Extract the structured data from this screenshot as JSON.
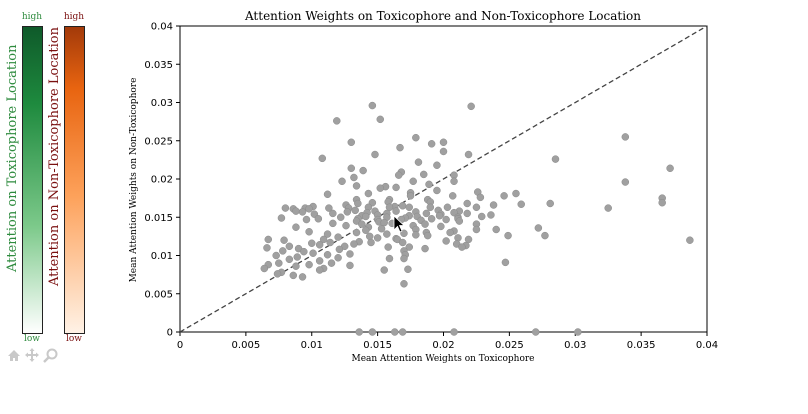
{
  "colorbar_green": {
    "label": "Attention on Toxicophore Location",
    "high": "high",
    "low": "low",
    "color_high": "#0f5a2a",
    "color_low": "#ffffff",
    "text_color": "#2e8b3e"
  },
  "colorbar_orange": {
    "label": "Attention on Non-Toxicophore Location",
    "high": "high",
    "low": "low",
    "color_high": "#a33a0a",
    "color_low": "#fff2e6",
    "text_color": "#7a1010"
  },
  "toolbar": {
    "home_icon": "home-icon",
    "pan_icon": "pan-icon",
    "zoom_icon": "zoom-icon"
  },
  "chart_data": {
    "type": "scatter",
    "title": "Attention Weights on Toxicophore and Non-Toxicophore Location",
    "xlabel": "Mean Attention Weights on Toxicophore",
    "ylabel": "Mean Attention Weights on Non-Toxicophore",
    "xlim": [
      0,
      0.04
    ],
    "ylim": [
      0,
      0.04
    ],
    "xticks": [
      "0",
      "0.005",
      "0.01",
      "0.015",
      "0.02",
      "0.025",
      "0.03",
      "0.035",
      "0.04"
    ],
    "yticks": [
      "0",
      "0.005",
      "0.01",
      "0.015",
      "0.02",
      "0.025",
      "0.03",
      "0.035",
      "0.04"
    ],
    "reference_line": "y = x",
    "point_color": "#a0a0a0",
    "points": [
      [
        0.0146,
        0.0296
      ],
      [
        0.0221,
        0.0295
      ],
      [
        0.0152,
        0.0278
      ],
      [
        0.0119,
        0.0276
      ],
      [
        0.013,
        0.0248
      ],
      [
        0.0179,
        0.0254
      ],
      [
        0.0338,
        0.0255
      ],
      [
        0.02,
        0.0248
      ],
      [
        0.0191,
        0.0246
      ],
      [
        0.0167,
        0.0241
      ],
      [
        0.02,
        0.0236
      ],
      [
        0.0148,
        0.0232
      ],
      [
        0.0108,
        0.0227
      ],
      [
        0.0219,
        0.0232
      ],
      [
        0.0181,
        0.0222
      ],
      [
        0.0195,
        0.0218
      ],
      [
        0.0285,
        0.0226
      ],
      [
        0.013,
        0.0214
      ],
      [
        0.0139,
        0.0211
      ],
      [
        0.0168,
        0.0209
      ],
      [
        0.0185,
        0.0206
      ],
      [
        0.0372,
        0.0214
      ],
      [
        0.0208,
        0.0205
      ],
      [
        0.0166,
        0.0205
      ],
      [
        0.0132,
        0.0202
      ],
      [
        0.0338,
        0.0196
      ],
      [
        0.0123,
        0.0197
      ],
      [
        0.0177,
        0.0197
      ],
      [
        0.0208,
        0.0197
      ],
      [
        0.0189,
        0.0193
      ],
      [
        0.0156,
        0.019
      ],
      [
        0.0134,
        0.0191
      ],
      [
        0.0164,
        0.0189
      ],
      [
        0.0152,
        0.0188
      ],
      [
        0.0195,
        0.0185
      ],
      [
        0.0226,
        0.0183
      ],
      [
        0.0175,
        0.0182
      ],
      [
        0.0255,
        0.0181
      ],
      [
        0.0246,
        0.0178
      ],
      [
        0.0143,
        0.0181
      ],
      [
        0.0112,
        0.018
      ],
      [
        0.0175,
        0.0178
      ],
      [
        0.0207,
        0.0178
      ],
      [
        0.0188,
        0.0173
      ],
      [
        0.0228,
        0.0176
      ],
      [
        0.0159,
        0.0173
      ],
      [
        0.0134,
        0.0173
      ],
      [
        0.0366,
        0.0175
      ],
      [
        0.019,
        0.017
      ],
      [
        0.0158,
        0.017
      ],
      [
        0.0135,
        0.0168
      ],
      [
        0.0146,
        0.0169
      ],
      [
        0.0259,
        0.0167
      ],
      [
        0.0281,
        0.0168
      ],
      [
        0.0366,
        0.0169
      ],
      [
        0.0218,
        0.0168
      ],
      [
        0.0238,
        0.0166
      ],
      [
        0.0126,
        0.0166
      ],
      [
        0.0163,
        0.0164
      ],
      [
        0.0169,
        0.0165
      ],
      [
        0.0101,
        0.0164
      ],
      [
        0.008,
        0.0162
      ],
      [
        0.0095,
        0.0162
      ],
      [
        0.0098,
        0.0161
      ],
      [
        0.0113,
        0.0162
      ],
      [
        0.0128,
        0.0162
      ],
      [
        0.0143,
        0.0163
      ],
      [
        0.0159,
        0.0163
      ],
      [
        0.0174,
        0.0163
      ],
      [
        0.019,
        0.0163
      ],
      [
        0.0203,
        0.0163
      ],
      [
        0.0225,
        0.0163
      ],
      [
        0.0325,
        0.0162
      ],
      [
        0.0086,
        0.0161
      ],
      [
        0.0088,
        0.0158
      ],
      [
        0.0133,
        0.0159
      ],
      [
        0.0148,
        0.0158
      ],
      [
        0.0164,
        0.0158
      ],
      [
        0.0196,
        0.0159
      ],
      [
        0.0212,
        0.0158
      ],
      [
        0.0093,
        0.0157
      ],
      [
        0.0127,
        0.0157
      ],
      [
        0.0142,
        0.0156
      ],
      [
        0.0179,
        0.0157
      ],
      [
        0.0208,
        0.0156
      ],
      [
        0.0116,
        0.0155
      ],
      [
        0.0157,
        0.0155
      ],
      [
        0.0187,
        0.0155
      ],
      [
        0.0198,
        0.0154
      ],
      [
        0.0218,
        0.0155
      ],
      [
        0.0102,
        0.0154
      ],
      [
        0.015,
        0.0153
      ],
      [
        0.0236,
        0.0153
      ],
      [
        0.0138,
        0.0152
      ],
      [
        0.0174,
        0.0152
      ],
      [
        0.0197,
        0.0152
      ],
      [
        0.0141,
        0.0151
      ],
      [
        0.0157,
        0.015
      ],
      [
        0.018,
        0.0151
      ],
      [
        0.0211,
        0.015
      ],
      [
        0.0229,
        0.0151
      ],
      [
        0.0122,
        0.015
      ],
      [
        0.0171,
        0.0149
      ],
      [
        0.0191,
        0.0148
      ],
      [
        0.0211,
        0.0148
      ],
      [
        0.0077,
        0.0149
      ],
      [
        0.0105,
        0.0148
      ],
      [
        0.0135,
        0.0148
      ],
      [
        0.0202,
        0.0147
      ],
      [
        0.015,
        0.0147
      ],
      [
        0.0168,
        0.0147
      ],
      [
        0.0096,
        0.0147
      ],
      [
        0.0183,
        0.0146
      ],
      [
        0.0212,
        0.0145
      ],
      [
        0.0134,
        0.0145
      ],
      [
        0.0151,
        0.0144
      ],
      [
        0.0155,
        0.0143
      ],
      [
        0.0161,
        0.0142
      ],
      [
        0.0116,
        0.0142
      ],
      [
        0.0138,
        0.0141
      ],
      [
        0.0186,
        0.0141
      ],
      [
        0.0225,
        0.0141
      ],
      [
        0.0177,
        0.0139
      ],
      [
        0.0126,
        0.0139
      ],
      [
        0.0198,
        0.0138
      ],
      [
        0.0088,
        0.0137
      ],
      [
        0.0143,
        0.0137
      ],
      [
        0.0153,
        0.0135
      ],
      [
        0.0225,
        0.0134
      ],
      [
        0.0179,
        0.0134
      ],
      [
        0.0141,
        0.0133
      ],
      [
        0.0272,
        0.0136
      ],
      [
        0.024,
        0.0134
      ],
      [
        0.0208,
        0.0132
      ],
      [
        0.0098,
        0.0131
      ],
      [
        0.0134,
        0.013
      ],
      [
        0.0187,
        0.013
      ],
      [
        0.0205,
        0.013
      ],
      [
        0.017,
        0.0129
      ],
      [
        0.0112,
        0.0128
      ],
      [
        0.0157,
        0.0128
      ],
      [
        0.0179,
        0.0127
      ],
      [
        0.0188,
        0.0126
      ],
      [
        0.0249,
        0.0126
      ],
      [
        0.0144,
        0.0125
      ],
      [
        0.0277,
        0.0126
      ],
      [
        0.012,
        0.0124
      ],
      [
        0.015,
        0.0123
      ],
      [
        0.0164,
        0.0122
      ],
      [
        0.0211,
        0.0123
      ],
      [
        0.0165,
        0.0121
      ],
      [
        0.0109,
        0.0121
      ],
      [
        0.0219,
        0.0121
      ],
      [
        0.0067,
        0.0121
      ],
      [
        0.0387,
        0.012
      ],
      [
        0.0079,
        0.012
      ],
      [
        0.0202,
        0.0119
      ],
      [
        0.0136,
        0.0118
      ],
      [
        0.0145,
        0.0117
      ],
      [
        0.0169,
        0.0117
      ],
      [
        0.0114,
        0.0117
      ],
      [
        0.01,
        0.0116
      ],
      [
        0.021,
        0.0115
      ],
      [
        0.0132,
        0.0115
      ],
      [
        0.0106,
        0.0114
      ],
      [
        0.0217,
        0.0113
      ],
      [
        0.0125,
        0.0112
      ],
      [
        0.0083,
        0.0112
      ],
      [
        0.0214,
        0.0111
      ],
      [
        0.0158,
        0.0111
      ],
      [
        0.0174,
        0.0111
      ],
      [
        0.0066,
        0.011
      ],
      [
        0.009,
        0.0109
      ],
      [
        0.0186,
        0.0109
      ],
      [
        0.0121,
        0.0108
      ],
      [
        0.0078,
        0.0106
      ],
      [
        0.017,
        0.0106
      ],
      [
        0.0094,
        0.0105
      ],
      [
        0.0101,
        0.0103
      ],
      [
        0.0129,
        0.0102
      ],
      [
        0.0112,
        0.0101
      ],
      [
        0.0171,
        0.0101
      ],
      [
        0.0073,
        0.01
      ],
      [
        0.0089,
        0.0098
      ],
      [
        0.012,
        0.0097
      ],
      [
        0.0159,
        0.0096
      ],
      [
        0.017,
        0.0096
      ],
      [
        0.0083,
        0.0095
      ],
      [
        0.0106,
        0.0093
      ],
      [
        0.0247,
        0.0091
      ],
      [
        0.0075,
        0.009
      ],
      [
        0.0115,
        0.009
      ],
      [
        0.0067,
        0.0088
      ],
      [
        0.0098,
        0.0088
      ],
      [
        0.0129,
        0.0087
      ],
      [
        0.0088,
        0.0086
      ],
      [
        0.0064,
        0.0083
      ],
      [
        0.0109,
        0.0083
      ],
      [
        0.0173,
        0.0082
      ],
      [
        0.0155,
        0.0081
      ],
      [
        0.0106,
        0.0081
      ],
      [
        0.0077,
        0.0078
      ],
      [
        0.0074,
        0.0076
      ],
      [
        0.0086,
        0.0074
      ],
      [
        0.0093,
        0.0072
      ],
      [
        0.017,
        0.0063
      ],
      [
        0.0136,
        0.0
      ],
      [
        0.0146,
        0.0
      ],
      [
        0.0163,
        0.0
      ],
      [
        0.0169,
        0.0
      ],
      [
        0.0208,
        0.0
      ],
      [
        0.027,
        0.0
      ],
      [
        0.0302,
        0.0
      ]
    ]
  }
}
